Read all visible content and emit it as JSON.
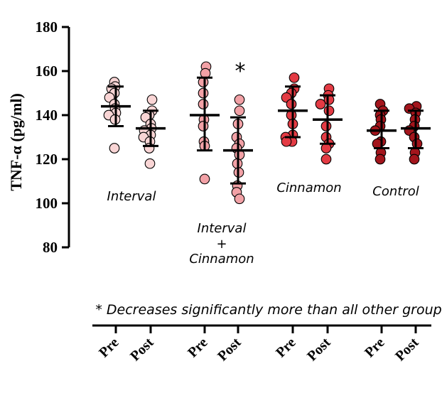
{
  "chart_data": {
    "type": "scatter",
    "ylabel": "TNF-α (pg/ml)",
    "ylim": [
      80,
      180
    ],
    "yticks": [
      80,
      100,
      120,
      140,
      160,
      180
    ],
    "grid": false,
    "annotation": "* Decreases significantly more than all other groups",
    "star": "*",
    "x_tick_labels": [
      "Pre",
      "Post",
      "Pre",
      "Post",
      "Pre",
      "Post",
      "Pre",
      "Post"
    ],
    "groups": [
      {
        "name": "Interval",
        "label_lines": [
          "Interval"
        ],
        "color": "#f9d5d5",
        "series": [
          {
            "name": "Pre",
            "points": [
              155,
              153,
              152,
              150,
              148,
              145,
              143,
              141,
              140,
              138,
              125
            ],
            "mean": 144,
            "sd_low": 135,
            "sd_high": 153
          },
          {
            "name": "Post",
            "points": [
              147,
              142,
              140,
              139,
              136,
              134,
              133,
              131,
              130,
              128,
              125,
              118
            ],
            "mean": 134,
            "sd_low": 126,
            "sd_high": 142
          }
        ]
      },
      {
        "name": "Interval + Cinnamon",
        "label_lines": [
          "Interval",
          "+",
          "Cinnamon"
        ],
        "color": "#f2a1a6",
        "series": [
          {
            "name": "Pre",
            "points": [
              162,
              159,
              155,
              150,
              145,
              138,
              135,
              128,
              126,
              111
            ],
            "mean": 140,
            "sd_low": 124,
            "sd_high": 157
          },
          {
            "name": "Post",
            "points": [
              147,
              142,
              136,
              130,
              127,
              125,
              122,
              118,
              114,
              108,
              105,
              102
            ],
            "mean": 124,
            "sd_low": 109,
            "sd_high": 139
          }
        ]
      },
      {
        "name": "Cinnamon",
        "label_lines": [
          "Cinnamon"
        ],
        "color": "#e33b44",
        "series": [
          {
            "name": "Pre",
            "points": [
              157,
              152,
              150,
              148,
              145,
              140,
              136,
              131,
              130,
              128,
              128
            ],
            "mean": 142,
            "sd_low": 130,
            "sd_high": 153
          },
          {
            "name": "Post",
            "points": [
              152,
              149,
              147,
              145,
              142,
              135,
              130,
              127,
              125,
              120
            ],
            "mean": 138,
            "sd_low": 127,
            "sd_high": 149
          }
        ]
      },
      {
        "name": "Control",
        "label_lines": [
          "Control"
        ],
        "color": "#a3151c",
        "series": [
          {
            "name": "Pre",
            "points": [
              145,
              142,
              140,
              138,
              135,
              133,
              128,
              127,
              123,
              120
            ],
            "mean": 133,
            "sd_low": 125,
            "sd_high": 142
          },
          {
            "name": "Post",
            "points": [
              144,
              143,
              141,
              138,
              135,
              133,
              130,
              127,
              123,
              120
            ],
            "mean": 134,
            "sd_low": 125,
            "sd_high": 142
          }
        ]
      }
    ]
  }
}
